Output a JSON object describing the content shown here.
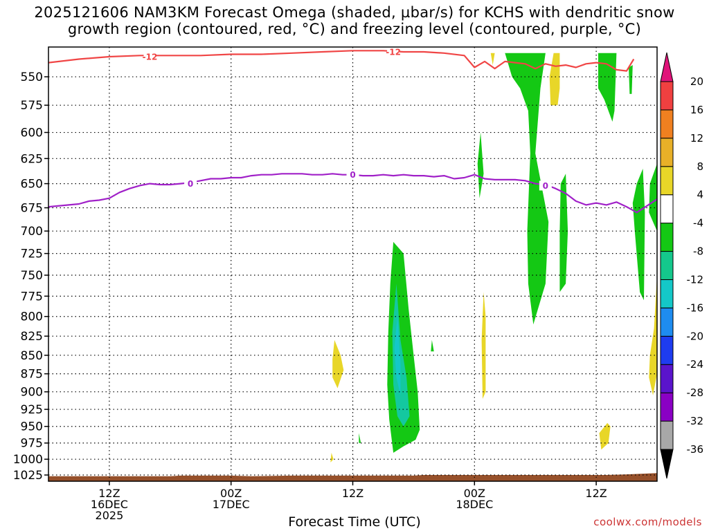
{
  "chart_data": {
    "type": "heatmap",
    "title": "2025121606 NAM3KM Forecast Omega (shaded, µbar/s) for KCHS with dendritic snow growth region (contoured, red, °C) and freezing level (contoured, purple, °C)",
    "title_lines": [
      "2025121606 NAM3KM Forecast Omega (shaded, µbar/s) for KCHS with dendritic snow",
      "growth region (contoured, red, °C) and freezing level (contoured, purple, °C)"
    ],
    "xlabel": "Forecast Time (UTC)",
    "ylabel": "",
    "x_hours_range": [
      0,
      60
    ],
    "x_ticks": [
      {
        "hour": 6,
        "label": "12Z",
        "sub1": "16DEC",
        "sub2": "2025"
      },
      {
        "hour": 18,
        "label": "00Z",
        "sub1": "17DEC",
        "sub2": ""
      },
      {
        "hour": 30,
        "label": "12Z",
        "sub1": "",
        "sub2": ""
      },
      {
        "hour": 42,
        "label": "00Z",
        "sub1": "18DEC",
        "sub2": ""
      },
      {
        "hour": 54,
        "label": "12Z",
        "sub1": "",
        "sub2": ""
      }
    ],
    "y_ticks": [
      550,
      575,
      600,
      625,
      650,
      675,
      700,
      725,
      750,
      775,
      800,
      825,
      850,
      875,
      900,
      925,
      950,
      975,
      1000,
      1025
    ],
    "y_range": [
      525,
      1035
    ],
    "y_scale": "log-pressure",
    "grid": true,
    "colorbar": {
      "boundaries": [
        -36,
        -32,
        -28,
        -24,
        -20,
        -16,
        -12,
        -8,
        -4,
        4,
        8,
        12,
        16,
        20
      ],
      "labels": [
        "20",
        "16",
        "12",
        "8",
        "4",
        "-4",
        "-8",
        "-12",
        "-16",
        "-20",
        "-24",
        "-28",
        "-32",
        "-36"
      ],
      "colors": [
        "#a8a8a8",
        "#8a00c4",
        "#5a14cc",
        "#1e3cf0",
        "#1e8cf0",
        "#14c8c8",
        "#14c88c",
        "#14c814",
        "#ffffff",
        "#e8d628",
        "#e8b028",
        "#f08020",
        "#f04040"
      ],
      "under_color": "#000000",
      "over_color": "#e0147a"
    },
    "contours": [
      {
        "name": "dendritic snow growth region",
        "level": -12,
        "color": "#f04545",
        "unit": "°C",
        "points": [
          [
            0,
            538
          ],
          [
            3,
            535
          ],
          [
            6,
            533
          ],
          [
            9,
            532
          ],
          [
            12,
            532
          ],
          [
            15,
            532
          ],
          [
            18,
            531
          ],
          [
            21,
            531
          ],
          [
            24,
            530
          ],
          [
            27,
            529
          ],
          [
            30,
            528
          ],
          [
            33,
            528
          ],
          [
            35,
            529
          ],
          [
            37,
            529
          ],
          [
            39,
            530
          ],
          [
            41,
            532
          ],
          [
            42,
            542
          ],
          [
            43,
            537
          ],
          [
            44,
            543
          ],
          [
            45,
            537
          ],
          [
            46,
            538
          ],
          [
            47,
            539
          ],
          [
            48,
            543
          ],
          [
            49,
            539
          ],
          [
            50,
            541
          ],
          [
            51,
            540
          ],
          [
            52,
            542
          ],
          [
            53,
            539
          ],
          [
            54,
            538
          ],
          [
            55,
            539
          ],
          [
            56,
            544
          ],
          [
            57,
            545
          ],
          [
            57.7,
            535
          ]
        ],
        "labels": [
          {
            "hour": 10,
            "p": 533
          },
          {
            "hour": 34,
            "p": 529
          }
        ]
      },
      {
        "name": "freezing level",
        "level": 0,
        "color": "#a020c8",
        "unit": "°C",
        "points": [
          [
            0,
            674
          ],
          [
            2,
            672
          ],
          [
            3,
            671
          ],
          [
            4,
            668
          ],
          [
            5,
            667
          ],
          [
            6,
            665
          ],
          [
            7,
            659
          ],
          [
            8,
            655
          ],
          [
            9,
            652
          ],
          [
            10,
            650
          ],
          [
            11,
            651
          ],
          [
            12,
            651
          ],
          [
            13,
            650
          ],
          [
            14,
            649
          ],
          [
            15,
            647
          ],
          [
            16,
            645
          ],
          [
            17,
            645
          ],
          [
            18,
            644
          ],
          [
            19,
            644
          ],
          [
            20,
            642
          ],
          [
            21,
            641
          ],
          [
            22,
            641
          ],
          [
            23,
            640
          ],
          [
            24,
            640
          ],
          [
            25,
            640
          ],
          [
            26,
            641
          ],
          [
            27,
            641
          ],
          [
            28,
            640
          ],
          [
            29,
            641
          ],
          [
            30,
            641
          ],
          [
            31,
            642
          ],
          [
            32,
            642
          ],
          [
            33,
            641
          ],
          [
            34,
            642
          ],
          [
            35,
            641
          ],
          [
            36,
            642
          ],
          [
            37,
            642
          ],
          [
            38,
            643
          ],
          [
            39,
            642
          ],
          [
            40,
            645
          ],
          [
            41,
            644
          ],
          [
            42,
            641
          ],
          [
            43,
            645
          ],
          [
            44,
            646
          ],
          [
            45,
            646
          ],
          [
            46,
            646
          ],
          [
            47,
            647
          ],
          [
            48,
            650
          ],
          [
            49,
            651
          ],
          [
            50,
            655
          ],
          [
            51,
            660
          ],
          [
            52,
            668
          ],
          [
            53,
            672
          ],
          [
            54,
            670
          ],
          [
            55,
            672
          ],
          [
            56,
            669
          ],
          [
            57,
            674
          ],
          [
            58,
            680
          ],
          [
            59,
            673
          ],
          [
            60,
            666
          ]
        ],
        "labels": [
          {
            "hour": 14,
            "p": 650
          },
          {
            "hour": 30,
            "p": 641
          },
          {
            "hour": 49,
            "p": 652
          }
        ]
      }
    ],
    "omega_regions": [
      {
        "category": "-8 to -4",
        "color": "#14c814",
        "points": [
          [
            34,
            712
          ],
          [
            35,
            725
          ],
          [
            35.5,
            790
          ],
          [
            36,
            850
          ],
          [
            36.4,
            900
          ],
          [
            36.6,
            955
          ],
          [
            36.2,
            970
          ],
          [
            35,
            980
          ],
          [
            34,
            990
          ],
          [
            33.6,
            940
          ],
          [
            33.4,
            890
          ],
          [
            33.5,
            820
          ],
          [
            33.7,
            760
          ]
        ]
      },
      {
        "category": "-12 to -8",
        "color": "#14c8a0",
        "points": [
          [
            34.3,
            760
          ],
          [
            34.7,
            830
          ],
          [
            35.3,
            880
          ],
          [
            35.6,
            935
          ],
          [
            35,
            950
          ],
          [
            34.4,
            935
          ],
          [
            34,
            890
          ],
          [
            33.9,
            820
          ]
        ]
      },
      {
        "category": "-16 to -12",
        "color": "#14c8c8",
        "points": [
          [
            34.4,
            800
          ],
          [
            34.7,
            860
          ],
          [
            34.7,
            905
          ],
          [
            34.3,
            880
          ],
          [
            34.1,
            840
          ]
        ]
      },
      {
        "category": "-8 to -4",
        "color": "#14c814",
        "points": [
          [
            37.8,
            830
          ],
          [
            38,
            845
          ],
          [
            37.7,
            845
          ]
        ]
      },
      {
        "category": "-8 to -4",
        "color": "#14c814",
        "points": [
          [
            30.6,
            960
          ],
          [
            30.8,
            975
          ],
          [
            30.6,
            975
          ]
        ]
      },
      {
        "category": "-8 to -4",
        "color": "#14c814",
        "points": [
          [
            42.6,
            600
          ],
          [
            42.9,
            640
          ],
          [
            42.5,
            665
          ],
          [
            42.3,
            630
          ]
        ]
      },
      {
        "category": "-8 to -4",
        "color": "#14c814",
        "points": [
          [
            45,
            530
          ],
          [
            49,
            530
          ],
          [
            48.5,
            560
          ],
          [
            48,
            620
          ],
          [
            49.3,
            690
          ],
          [
            49,
            760
          ],
          [
            47.8,
            810
          ],
          [
            47.3,
            760
          ],
          [
            47.2,
            700
          ],
          [
            47.5,
            620
          ],
          [
            47.3,
            580
          ],
          [
            46.5,
            560
          ],
          [
            45.7,
            550
          ]
        ]
      },
      {
        "category": "-8 to -4",
        "color": "#14c814",
        "points": [
          [
            51,
            640
          ],
          [
            51.2,
            700
          ],
          [
            51,
            760
          ],
          [
            50.4,
            770
          ],
          [
            50.4,
            700
          ],
          [
            50.5,
            650
          ]
        ]
      },
      {
        "category": "-8 to -4",
        "color": "#14c814",
        "points": [
          [
            54.2,
            530
          ],
          [
            56,
            530
          ],
          [
            55.8,
            580
          ],
          [
            55.6,
            590
          ],
          [
            54.8,
            570
          ],
          [
            54.2,
            560
          ]
        ]
      },
      {
        "category": "-8 to -4",
        "color": "#14c814",
        "points": [
          [
            57.2,
            542
          ],
          [
            57.6,
            540
          ],
          [
            57.5,
            565
          ],
          [
            57.3,
            565
          ]
        ]
      },
      {
        "category": "-8 to -4",
        "color": "#14c814",
        "points": [
          [
            58,
            650
          ],
          [
            58.6,
            635
          ],
          [
            58.8,
            680
          ],
          [
            58.7,
            780
          ],
          [
            58.3,
            770
          ],
          [
            57.8,
            700
          ],
          [
            57.6,
            670
          ]
        ]
      },
      {
        "category": "-8 to -4",
        "color": "#14c814",
        "points": [
          [
            59.3,
            650
          ],
          [
            60,
            630
          ],
          [
            60,
            700
          ],
          [
            59.6,
            690
          ],
          [
            59.2,
            680
          ]
        ]
      },
      {
        "category": "4 to 8",
        "color": "#e8d628",
        "points": [
          [
            28.2,
            830
          ],
          [
            28.8,
            850
          ],
          [
            29.1,
            870
          ],
          [
            28.5,
            895
          ],
          [
            28.0,
            880
          ],
          [
            28.0,
            855
          ]
        ]
      },
      {
        "category": "4 to 8",
        "color": "#e8d628",
        "points": [
          [
            27.9,
            990
          ],
          [
            28.1,
            1000
          ],
          [
            27.8,
            1005
          ]
        ]
      },
      {
        "category": "4 to 8",
        "color": "#e8d628",
        "points": [
          [
            42.9,
            770
          ],
          [
            43.1,
            800
          ],
          [
            43.1,
            900
          ],
          [
            42.8,
            910
          ],
          [
            42.7,
            830
          ]
        ]
      },
      {
        "category": "4 to 8",
        "color": "#e8d628",
        "points": [
          [
            49.8,
            530
          ],
          [
            50.4,
            530
          ],
          [
            50.4,
            560
          ],
          [
            50.2,
            575
          ],
          [
            49.5,
            575
          ],
          [
            49.4,
            550
          ]
        ]
      },
      {
        "category": "4 to 8",
        "color": "#e8d628",
        "points": [
          [
            43.6,
            530
          ],
          [
            44,
            530
          ],
          [
            43.8,
            540
          ]
        ]
      },
      {
        "category": "4 to 8",
        "color": "#e8d628",
        "points": [
          [
            55.1,
            945
          ],
          [
            55.4,
            950
          ],
          [
            55.2,
            975
          ],
          [
            54.5,
            985
          ],
          [
            54.3,
            960
          ]
        ]
      },
      {
        "category": "4 to 8",
        "color": "#e8d628",
        "points": [
          [
            60,
            750
          ],
          [
            60,
            875
          ],
          [
            59.6,
            905
          ],
          [
            59.2,
            880
          ],
          [
            59.3,
            850
          ],
          [
            59.7,
            815
          ]
        ]
      }
    ],
    "terrain": {
      "color": "#96502a",
      "surface_pressure": [
        [
          0,
          1027
        ],
        [
          12,
          1027
        ],
        [
          13,
          1026
        ],
        [
          18,
          1026
        ],
        [
          20,
          1027
        ],
        [
          24,
          1026
        ],
        [
          36,
          1026
        ],
        [
          37,
          1025
        ],
        [
          55,
          1025
        ],
        [
          57,
          1024
        ],
        [
          60,
          1022
        ]
      ]
    }
  },
  "credit": "coolwx.com/models"
}
